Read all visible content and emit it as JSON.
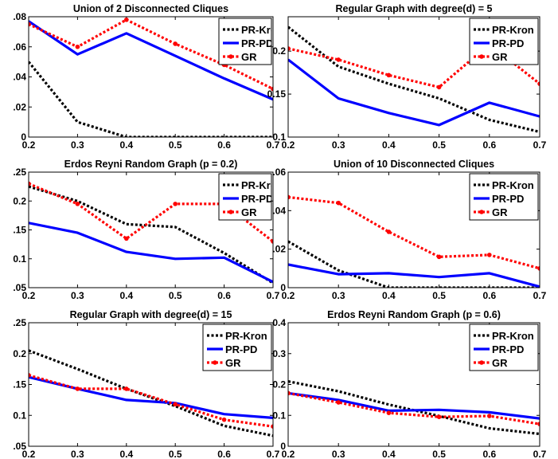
{
  "chart_data": [
    {
      "type": "line",
      "title": "Union of 2 Disconnected Cliques",
      "x": [
        0.2,
        0.3,
        0.4,
        0.5,
        0.6,
        0.7
      ],
      "xticks": [
        "0.2",
        "0.3",
        "0.4",
        "0.5",
        "0.6",
        "0.7"
      ],
      "xlim": [
        0.2,
        0.7
      ],
      "ylim": [
        0,
        0.08
      ],
      "yticks": [
        0,
        0.02,
        0.04,
        0.06,
        0.08
      ],
      "yticklabels": [
        "0",
        ".02",
        ".04",
        ".06",
        ".08"
      ],
      "legend": "top-right",
      "series": [
        {
          "name": "PR-Kron",
          "color": "#000000",
          "style": "dotted",
          "values": [
            0.05,
            0.01,
            0.0,
            0.0,
            0.0,
            0.0
          ]
        },
        {
          "name": "PR-PD",
          "color": "#0000ff",
          "style": "solid",
          "values": [
            0.077,
            0.055,
            0.069,
            0.054,
            0.039,
            0.025
          ]
        },
        {
          "name": "GR",
          "color": "#ff0000",
          "style": "dotted-marker",
          "values": [
            0.075,
            0.06,
            0.078,
            0.062,
            0.048,
            0.032
          ]
        }
      ]
    },
    {
      "type": "line",
      "title": "Regular Graph with degree(d) = 5",
      "x": [
        0.2,
        0.3,
        0.4,
        0.5,
        0.6,
        0.7
      ],
      "xticks": [
        "0.2",
        "0.3",
        "0.4",
        "0.5",
        "0.6",
        "0.7"
      ],
      "xlim": [
        0.2,
        0.7
      ],
      "ylim": [
        0.1,
        0.24
      ],
      "yticks": [
        0.1,
        0.15,
        0.2
      ],
      "yticklabels": [
        "0.1",
        "0.15",
        "0.2"
      ],
      "legend": "top-right",
      "series": [
        {
          "name": "PR-Kron",
          "color": "#000000",
          "style": "dotted",
          "values": [
            0.228,
            0.182,
            0.162,
            0.145,
            0.12,
            0.106
          ]
        },
        {
          "name": "PR-PD",
          "color": "#0000ff",
          "style": "solid",
          "values": [
            0.19,
            0.145,
            0.128,
            0.114,
            0.14,
            0.124
          ]
        },
        {
          "name": "GR",
          "color": "#ff0000",
          "style": "dotted-marker",
          "values": [
            0.203,
            0.19,
            0.172,
            0.158,
            0.208,
            0.162
          ]
        }
      ]
    },
    {
      "type": "line",
      "title": "Erdos Reyni Random Graph (p = 0.2)",
      "x": [
        0.2,
        0.3,
        0.4,
        0.5,
        0.6,
        0.7
      ],
      "xticks": [
        "0.2",
        "0.3",
        "0.4",
        "0.5",
        "0.6",
        "0.7"
      ],
      "xlim": [
        0.2,
        0.7
      ],
      "ylim": [
        0.05,
        0.25
      ],
      "yticks": [
        0.05,
        0.1,
        0.15,
        0.2,
        0.25
      ],
      "yticklabels": [
        ".05",
        "0.1",
        ".15",
        "0.2",
        ".25"
      ],
      "legend": "top-right",
      "series": [
        {
          "name": "PR-Kron",
          "color": "#000000",
          "style": "dotted",
          "values": [
            0.225,
            0.2,
            0.16,
            0.155,
            0.11,
            0.058
          ]
        },
        {
          "name": "PR-PD",
          "color": "#0000ff",
          "style": "solid",
          "values": [
            0.162,
            0.145,
            0.112,
            0.1,
            0.102,
            0.06
          ]
        },
        {
          "name": "GR",
          "color": "#ff0000",
          "style": "dotted-marker",
          "values": [
            0.23,
            0.195,
            0.135,
            0.195,
            0.195,
            0.13
          ]
        }
      ]
    },
    {
      "type": "line",
      "title": "Union of 10 Disconnected Cliques",
      "x": [
        0.2,
        0.3,
        0.4,
        0.5,
        0.6,
        0.7
      ],
      "xticks": [
        "0.2",
        "0.3",
        "0.4",
        "0.5",
        "0.6",
        "0.7"
      ],
      "xlim": [
        0.2,
        0.7
      ],
      "ylim": [
        0,
        0.06
      ],
      "yticks": [
        0,
        0.02,
        0.04,
        0.06
      ],
      "yticklabels": [
        "0",
        ".02",
        ".04",
        ".06"
      ],
      "legend": "top-right",
      "series": [
        {
          "name": "PR-Kron",
          "color": "#000000",
          "style": "dotted",
          "values": [
            0.024,
            0.009,
            0.0,
            0.0,
            0.0,
            0.0
          ]
        },
        {
          "name": "PR-PD",
          "color": "#0000ff",
          "style": "solid",
          "values": [
            0.012,
            0.007,
            0.0075,
            0.0055,
            0.0075,
            0.0005
          ]
        },
        {
          "name": "GR",
          "color": "#ff0000",
          "style": "dotted-marker",
          "values": [
            0.047,
            0.044,
            0.029,
            0.016,
            0.017,
            0.01
          ]
        }
      ]
    },
    {
      "type": "line",
      "title": "Regular Graph with degree(d) = 15",
      "x": [
        0.2,
        0.3,
        0.4,
        0.5,
        0.6,
        0.7
      ],
      "xticks": [
        "0.2",
        "0.3",
        "0.4",
        "0.5",
        "0.6",
        "0.7"
      ],
      "xlim": [
        0.2,
        0.7
      ],
      "ylim": [
        0.05,
        0.25
      ],
      "yticks": [
        0.05,
        0.1,
        0.15,
        0.2,
        0.25
      ],
      "yticklabels": [
        ".05",
        "0.1",
        ".15",
        "0.2",
        ".25"
      ],
      "legend": "top-right",
      "series": [
        {
          "name": "PR-Kron",
          "color": "#000000",
          "style": "dotted",
          "values": [
            0.205,
            0.175,
            0.143,
            0.115,
            0.083,
            0.067
          ]
        },
        {
          "name": "PR-PD",
          "color": "#0000ff",
          "style": "solid",
          "values": [
            0.162,
            0.143,
            0.125,
            0.12,
            0.102,
            0.096
          ]
        },
        {
          "name": "GR",
          "color": "#ff0000",
          "style": "dotted-marker",
          "values": [
            0.165,
            0.143,
            0.143,
            0.118,
            0.093,
            0.082
          ]
        }
      ]
    },
    {
      "type": "line",
      "title": "Erdos Reyni Random Graph (p = 0.6)",
      "x": [
        0.2,
        0.3,
        0.4,
        0.5,
        0.6,
        0.7
      ],
      "xticks": [
        "0.2",
        "0.3",
        "0.4",
        "0.5",
        "0.6",
        "0.7"
      ],
      "xlim": [
        0.2,
        0.7
      ],
      "ylim": [
        0,
        0.4
      ],
      "yticks": [
        0,
        0.1,
        0.2,
        0.3,
        0.4
      ],
      "yticklabels": [
        "0",
        "0.1",
        "0.2",
        "0.3",
        "0.4"
      ],
      "legend": "top-right",
      "series": [
        {
          "name": "PR-Kron",
          "color": "#000000",
          "style": "dotted",
          "values": [
            0.21,
            0.178,
            0.135,
            0.098,
            0.058,
            0.04
          ]
        },
        {
          "name": "PR-PD",
          "color": "#0000ff",
          "style": "solid",
          "values": [
            0.172,
            0.15,
            0.115,
            0.118,
            0.11,
            0.09
          ]
        },
        {
          "name": "GR",
          "color": "#ff0000",
          "style": "dotted-marker",
          "values": [
            0.172,
            0.142,
            0.108,
            0.095,
            0.098,
            0.072
          ]
        }
      ]
    }
  ]
}
